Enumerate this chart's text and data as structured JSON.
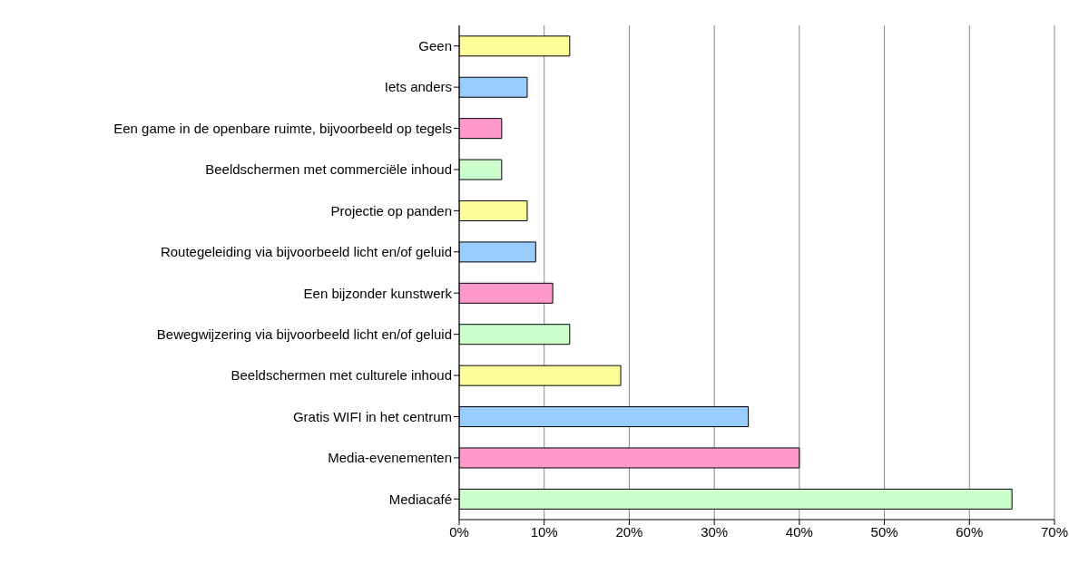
{
  "chart_data": {
    "type": "bar",
    "orientation": "horizontal",
    "categories": [
      "Geen",
      "Iets anders",
      "Een game in de openbare ruimte, bijvoorbeeld op tegels",
      "Beeldschermen met commerciële inhoud",
      "Projectie op panden",
      "Routegeleiding via bijvoorbeeld licht en/of geluid",
      "Een bijzonder kunstwerk",
      "Bewegwijzering via bijvoorbeeld licht en/of geluid",
      "Beeldschermen met culturele inhoud",
      "Gratis WIFI in het centrum",
      "Media-evenementen",
      "Mediacafé"
    ],
    "values": [
      13,
      8,
      5,
      5,
      8,
      9,
      11,
      13,
      19,
      34,
      40,
      65
    ],
    "colors": [
      "#ffff99",
      "#99ccff",
      "#ff99cc",
      "#ccffcc",
      "#ffff99",
      "#99ccff",
      "#ff99cc",
      "#ccffcc",
      "#ffff99",
      "#99ccff",
      "#ff99cc",
      "#ccffcc"
    ],
    "xlim": [
      0,
      70
    ],
    "xticks": [
      {
        "value": 0,
        "label": "0%"
      },
      {
        "value": 10,
        "label": "10%"
      },
      {
        "value": 20,
        "label": "20%"
      },
      {
        "value": 30,
        "label": "30%"
      },
      {
        "value": 40,
        "label": "40%"
      },
      {
        "value": 50,
        "label": "50%"
      },
      {
        "value": 60,
        "label": "60%"
      },
      {
        "value": 70,
        "label": "70%"
      }
    ],
    "grid": "x"
  }
}
